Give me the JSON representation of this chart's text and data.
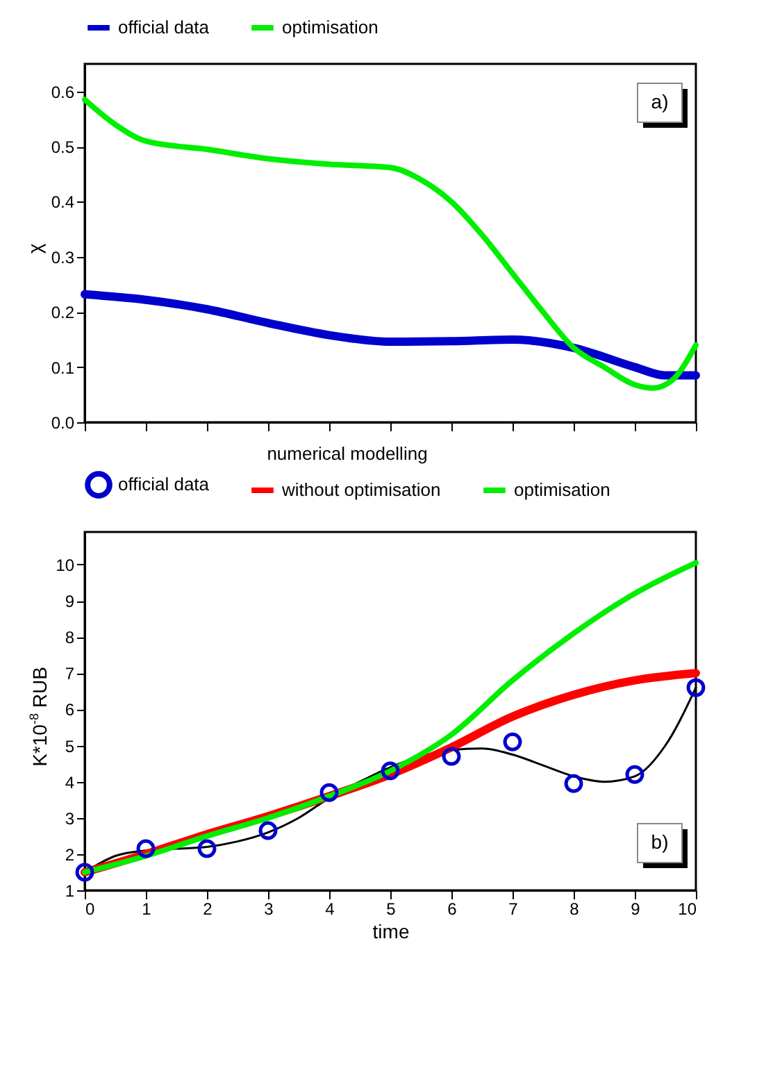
{
  "chart_data": [
    {
      "type": "line",
      "ylabel": "χ",
      "xlim": [
        0,
        10
      ],
      "xticks": [
        0,
        1,
        2,
        3,
        4,
        5,
        6,
        7,
        8,
        9,
        10
      ],
      "ylim": [
        0,
        0.65
      ],
      "yticks": [
        {
          "value": 0,
          "label": "0.0"
        },
        0.1,
        0.2,
        0.3,
        0.4,
        0.5,
        0.6
      ],
      "tick_labels": "y",
      "legend": "top",
      "grid": false,
      "annotations": [
        "a)"
      ],
      "series": [
        {
          "name": "official data",
          "color": "#0000cc",
          "x": [
            0,
            1,
            2,
            3,
            4,
            5,
            6,
            7,
            8,
            9,
            9.5,
            10
          ],
          "values": [
            0.232,
            0.222,
            0.205,
            0.18,
            0.158,
            0.146,
            0.147,
            0.15,
            0.135,
            0.1,
            0.085,
            0.085
          ]
        },
        {
          "name": "optimisation",
          "color": "#00ee00",
          "x": [
            0,
            0.5,
            1,
            2,
            3,
            4,
            5,
            5.5,
            6,
            6.5,
            7,
            7.5,
            8,
            8.5,
            9,
            9.3,
            9.6,
            10
          ],
          "values": [
            0.585,
            0.54,
            0.51,
            0.495,
            0.478,
            0.468,
            0.462,
            0.44,
            0.4,
            0.34,
            0.27,
            0.2,
            0.135,
            0.1,
            0.068,
            0.062,
            0.075,
            0.14
          ]
        }
      ]
    },
    {
      "type": "line",
      "xlabel": "time",
      "ylabel": "K*10$^{-8}$ RUB",
      "legend_title": "numerical modelling",
      "xlim": [
        0,
        10
      ],
      "xticks": [
        0,
        1,
        2,
        3,
        4,
        5,
        6,
        7,
        8,
        9,
        10
      ],
      "ylim": [
        1,
        10.9
      ],
      "yticks": [
        1,
        2,
        3,
        4,
        5,
        6,
        7,
        8,
        9,
        10
      ],
      "legend": "top",
      "grid": false,
      "annotations": [
        "b)"
      ],
      "series": [
        {
          "name": "official data",
          "type": "scatter",
          "marker": "circle",
          "color": "#0000cc",
          "x": [
            0,
            1,
            2,
            3,
            4,
            5,
            6,
            7,
            8,
            9,
            10
          ],
          "values": [
            1.5,
            2.15,
            2.15,
            2.65,
            3.7,
            4.3,
            4.7,
            5.1,
            3.95,
            4.2,
            6.6
          ]
        },
        {
          "type": "line",
          "color": "#000000",
          "x": [
            0,
            0.5,
            1,
            1.5,
            2,
            2.5,
            3,
            3.5,
            4,
            4.5,
            5,
            5.5,
            6,
            6.5,
            7,
            7.5,
            8,
            8.5,
            9,
            9.5,
            10
          ],
          "values": [
            1.5,
            1.95,
            2.1,
            2.15,
            2.2,
            2.35,
            2.6,
            3.0,
            3.55,
            4.0,
            4.4,
            4.7,
            4.88,
            4.92,
            4.75,
            4.45,
            4.15,
            4.0,
            4.15,
            5.0,
            6.6
          ]
        },
        {
          "name": "without optimisation",
          "color": "#ff0000",
          "x": [
            0,
            1,
            2,
            3,
            4,
            5,
            6,
            7,
            8,
            9,
            10
          ],
          "values": [
            1.5,
            2.0,
            2.55,
            3.05,
            3.6,
            4.2,
            4.95,
            5.8,
            6.4,
            6.8,
            7.0
          ]
        },
        {
          "name": "optimisation",
          "color": "#00ee00",
          "x": [
            0,
            1,
            2,
            3,
            4,
            5,
            6,
            7,
            8,
            9,
            10
          ],
          "values": [
            1.5,
            1.95,
            2.5,
            3.0,
            3.6,
            4.3,
            5.3,
            6.8,
            8.1,
            9.2,
            10.05
          ]
        }
      ]
    }
  ]
}
